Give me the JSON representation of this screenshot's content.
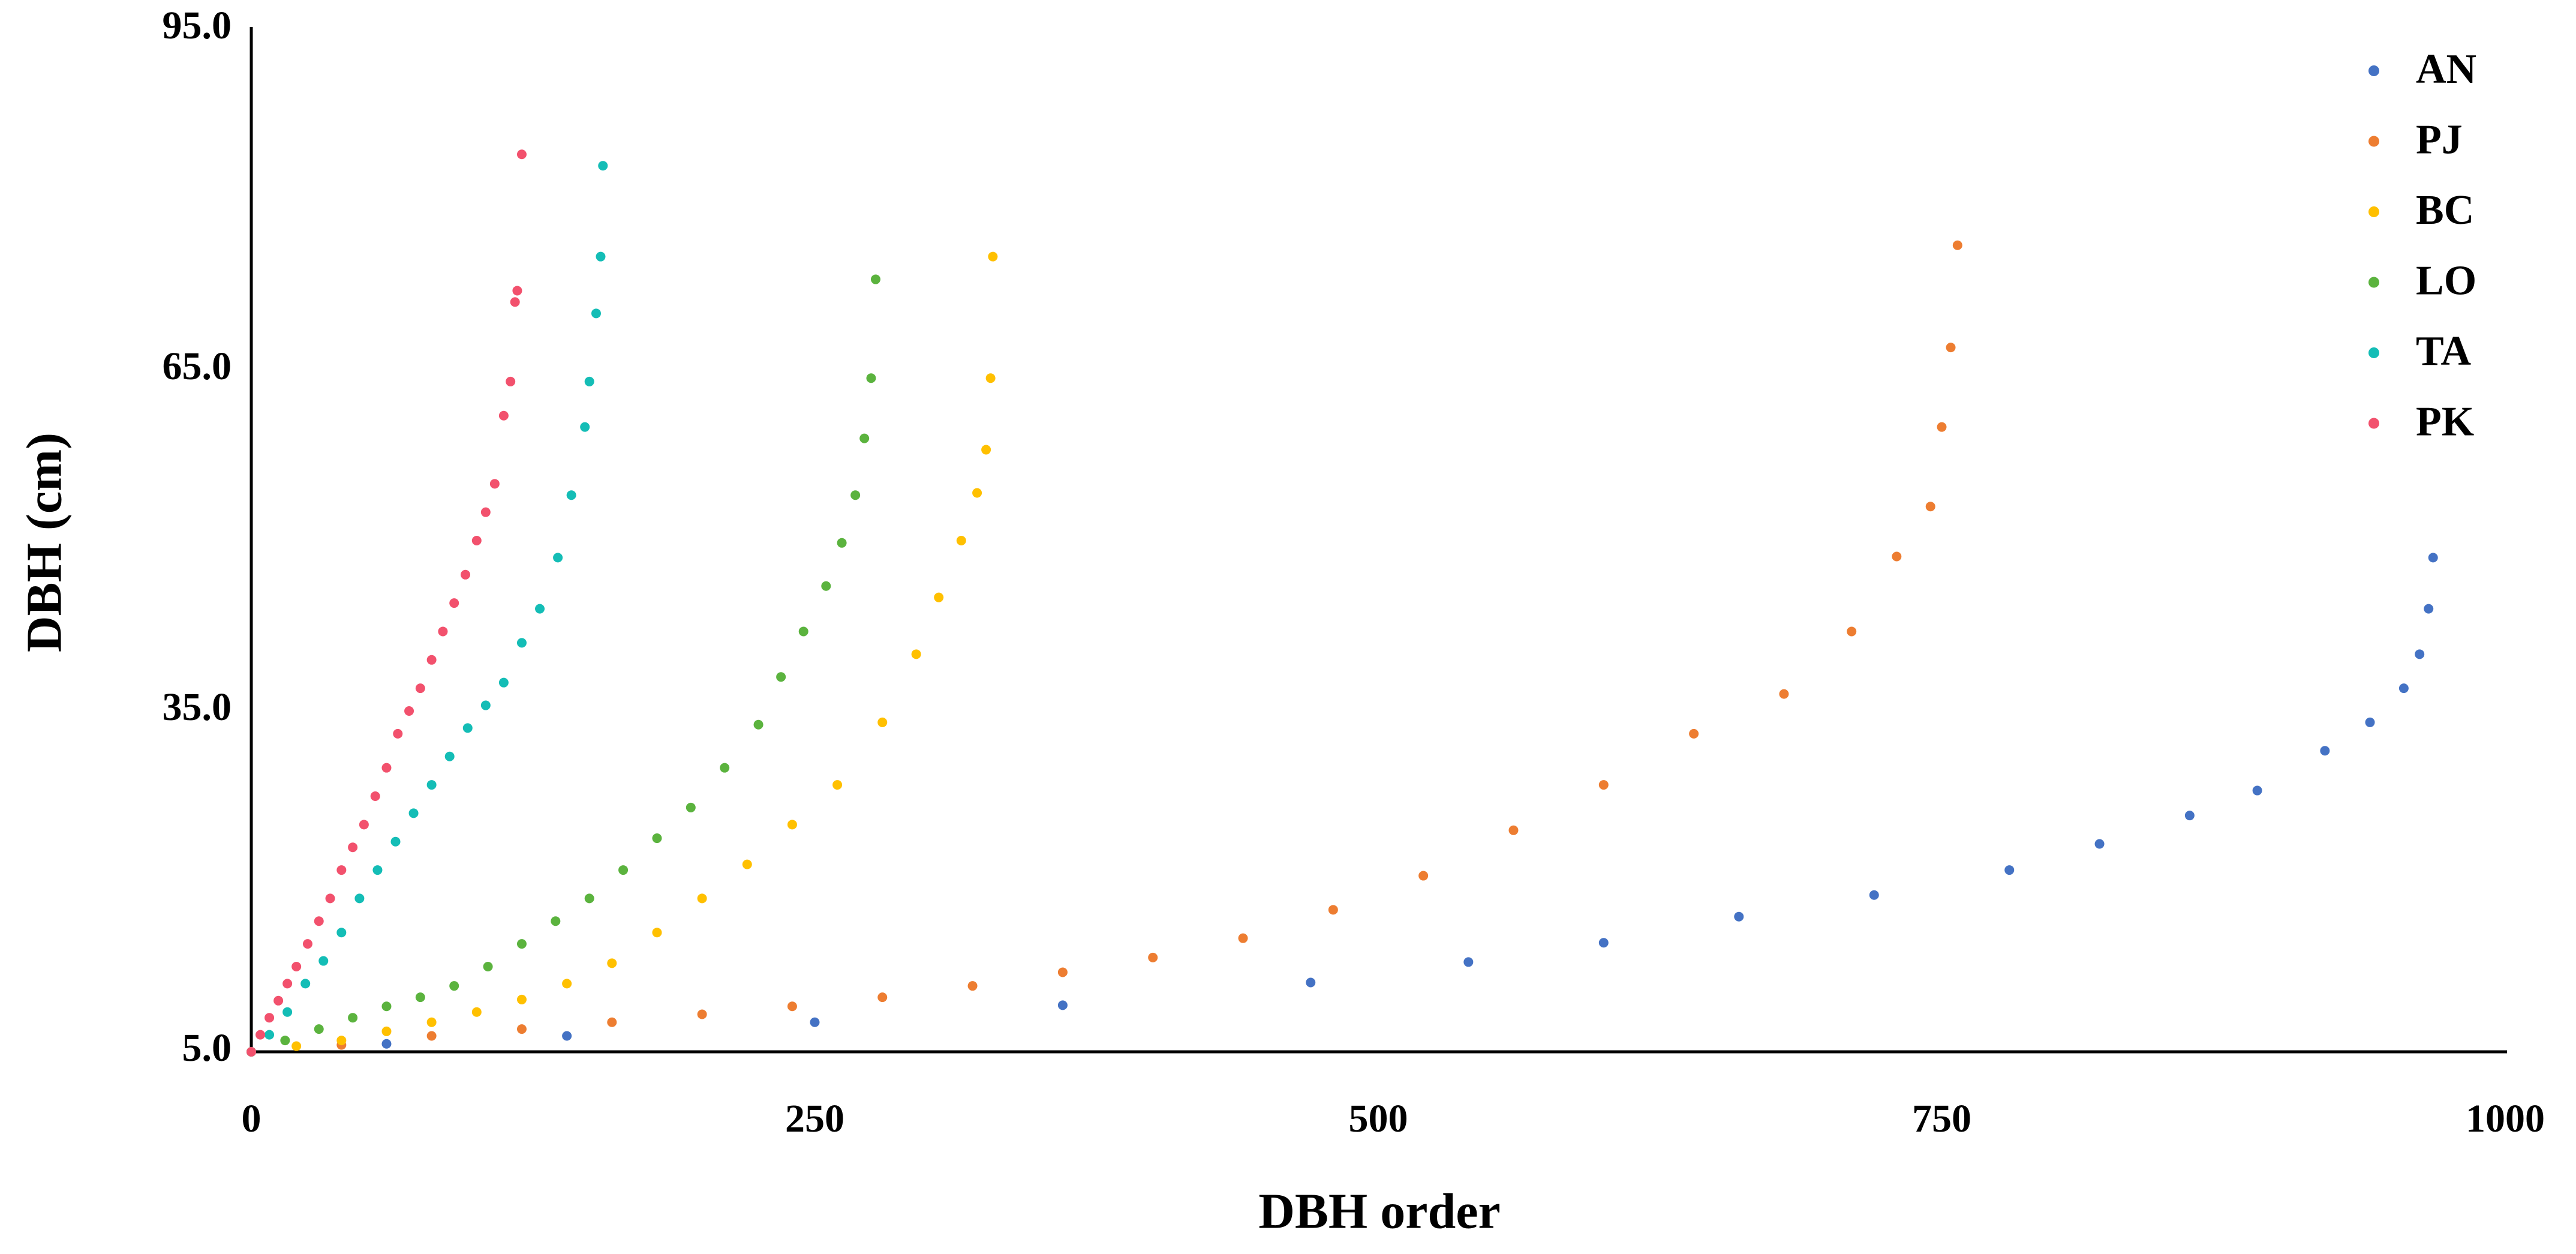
{
  "chart_data": {
    "type": "scatter",
    "xlabel": "DBH order",
    "ylabel": "DBH (cm)",
    "xlim": [
      0,
      1000
    ],
    "xticks": [
      0,
      250,
      500,
      750,
      1000
    ],
    "ylim": [
      5,
      95
    ],
    "yticks": [
      {
        "value": 5,
        "label": "5.0"
      },
      {
        "value": 35,
        "label": "35.0"
      },
      {
        "value": 65,
        "label": "65.0"
      },
      {
        "value": 95,
        "label": "95.0"
      }
    ],
    "grid": false,
    "legend": "top-right",
    "series": [
      {
        "name": "AN",
        "color": "#4472c4",
        "x": [
          0,
          60,
          140,
          250,
          360,
          470,
          540,
          600,
          660,
          720,
          780,
          820,
          860,
          890,
          920,
          940,
          955,
          962,
          966,
          968
        ],
        "values": [
          5,
          5.7,
          6.4,
          7.6,
          9.1,
          11.1,
          12.9,
          14.6,
          16.9,
          18.8,
          21,
          23.3,
          25.8,
          28,
          31.5,
          34,
          37,
          40,
          44,
          48.5
        ]
      },
      {
        "name": "PJ",
        "color": "#ed7d31",
        "x": [
          0,
          40,
          80,
          120,
          160,
          200,
          240,
          280,
          320,
          360,
          400,
          440,
          480,
          520,
          560,
          600,
          640,
          680,
          710,
          730,
          745,
          750,
          754,
          757
        ],
        "values": [
          5,
          5.6,
          6.4,
          7,
          7.6,
          8.3,
          9,
          9.8,
          10.8,
          12,
          13.3,
          15,
          17.5,
          20.5,
          24.5,
          28.5,
          33,
          36.5,
          42,
          48.6,
          53,
          60,
          67,
          76
        ]
      },
      {
        "name": "BC",
        "color": "#ffc000",
        "x": [
          0,
          20,
          40,
          60,
          80,
          100,
          120,
          140,
          160,
          180,
          200,
          220,
          240,
          260,
          280,
          295,
          305,
          315,
          322,
          326,
          328,
          329
        ],
        "values": [
          5,
          5.5,
          6,
          6.8,
          7.6,
          8.5,
          9.6,
          11,
          12.8,
          15.5,
          18.5,
          21.5,
          25,
          28.5,
          34,
          40,
          45,
          50,
          54.2,
          58,
          64.3,
          75
        ]
      },
      {
        "name": "LO",
        "color": "#5bb33e",
        "x": [
          0,
          15,
          30,
          45,
          60,
          75,
          90,
          105,
          120,
          135,
          150,
          165,
          180,
          195,
          210,
          225,
          235,
          245,
          255,
          262,
          268,
          272,
          275,
          277
        ],
        "values": [
          5,
          6,
          7,
          8,
          9,
          9.8,
          10.8,
          12.5,
          14.5,
          16.5,
          18.5,
          21,
          23.8,
          26.5,
          30,
          33.8,
          38,
          42,
          46,
          49.8,
          54,
          59,
          64.3,
          73
        ]
      },
      {
        "name": "TA",
        "color": "#14bdb6",
        "x": [
          0,
          8,
          16,
          24,
          32,
          40,
          48,
          56,
          64,
          72,
          80,
          88,
          96,
          104,
          112,
          120,
          128,
          136,
          142,
          148,
          150,
          153,
          155,
          156
        ],
        "values": [
          5,
          6.5,
          8.5,
          11,
          13,
          15.5,
          18.5,
          21,
          23.5,
          26,
          28.5,
          31,
          33.5,
          35.5,
          37.5,
          41,
          44,
          48.5,
          54,
          60,
          64,
          70,
          75,
          83
        ]
      },
      {
        "name": "PK",
        "color": "#f2516d",
        "x": [
          0,
          4,
          8,
          12,
          16,
          20,
          25,
          30,
          35,
          40,
          45,
          50,
          55,
          60,
          65,
          70,
          75,
          80,
          85,
          90,
          95,
          100,
          104,
          108,
          112,
          115,
          117,
          118,
          120
        ],
        "values": [
          5,
          6.5,
          8,
          9.5,
          11,
          12.5,
          14.5,
          16.5,
          18.5,
          21,
          23,
          25,
          27.5,
          30,
          33,
          35,
          37,
          39.5,
          42,
          44.5,
          47,
          50,
          52.5,
          55,
          61,
          64,
          71,
          72,
          84
        ]
      }
    ]
  }
}
